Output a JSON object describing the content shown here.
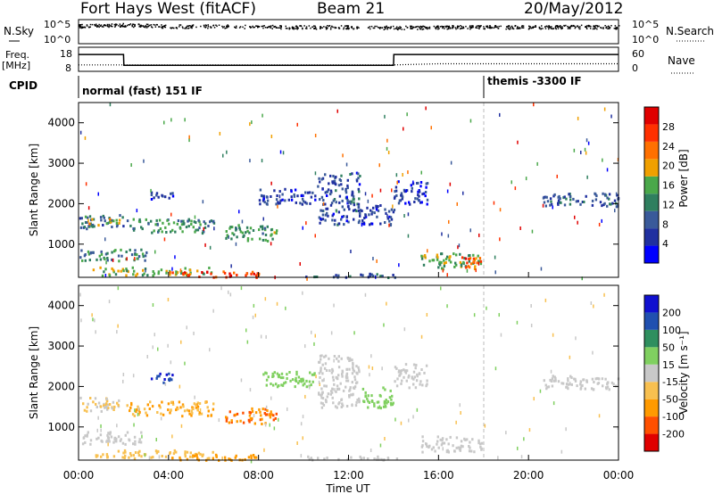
{
  "header": {
    "radar": "Fort Hays West (fitACF)",
    "beam": "Beam 21",
    "date": "20/May/2012"
  },
  "side_labels": {
    "nsky": "N.Sky",
    "freq": "Freq.",
    "freq_unit": "[MHz]",
    "cpid": "CPID",
    "nsearch": "N.Search",
    "nave": "Nave"
  },
  "cpid_modes": {
    "mode1": "normal (fast) 151 IF",
    "mode2": "themis -3300 IF"
  },
  "colors": {
    "power": [
      "#0000ff",
      "#2030a0",
      "#3a5a9a",
      "#2f7f5f",
      "#4aa84a",
      "#f0a000",
      "#ff7000",
      "#ff3000",
      "#e00000"
    ],
    "velocity": [
      "#e00000",
      "#ff5000",
      "#ff9a00",
      "#f8c050",
      "#c8c8c8",
      "#80d060",
      "#2f8f5f",
      "#2050b0",
      "#1010d0"
    ],
    "ground_scatter": "#c8c8c8"
  },
  "chart_data": [
    {
      "type": "line",
      "name": "sky-noise-panel",
      "left_tick_labels": [
        "10^5",
        "10^0"
      ],
      "right_tick_labels": [
        "10^5",
        "10^0"
      ],
      "series": [
        {
          "name": "N.Sky",
          "x": [
            "00:00",
            "02:00",
            "04:00",
            "06:00",
            "08:00",
            "10:00",
            "12:00",
            "14:00",
            "16:00",
            "18:00",
            "20:00",
            "22:00",
            "24:00"
          ],
          "values": [
            0.75,
            0.8,
            0.73,
            0.74,
            0.72,
            0.7,
            0.71,
            0.68,
            0.7,
            0.71,
            0.7,
            0.72,
            0.7
          ]
        }
      ],
      "ylim": [
        0,
        1
      ]
    },
    {
      "type": "line",
      "name": "frequency-panel",
      "left_tick_labels": [
        "18",
        "8"
      ],
      "right_tick_labels": [
        "60",
        "0"
      ],
      "series": [
        {
          "name": "Freq.",
          "x": [
            "00:00",
            "02:00",
            "02:01",
            "14:00",
            "14:01",
            "24:00"
          ],
          "values": [
            15,
            15,
            10.5,
            10.5,
            15,
            15
          ]
        },
        {
          "name": "Nave",
          "x": [
            "00:00",
            "14:00",
            "16:00",
            "24:00"
          ],
          "values": [
            16,
            16,
            19,
            19
          ]
        }
      ],
      "ylim_left": [
        8,
        18
      ],
      "ylim_right": [
        0,
        60
      ]
    },
    {
      "type": "heatmap",
      "name": "power-panel",
      "xlabel": "",
      "ylabel": "Slant Range [km]",
      "y_ticks": [
        "1000",
        "2000",
        "3000",
        "4000"
      ],
      "ylim": [
        180,
        4500
      ],
      "colorbar_label": "Power [dB]",
      "colorbar_ticks": [
        "4",
        "8",
        "12",
        "16",
        "20",
        "24",
        "28"
      ],
      "colorbar_range": [
        0,
        30
      ],
      "regions": [
        {
          "t0": 0.0,
          "t1": 2.0,
          "r0": 1400,
          "r1": 1750,
          "v": 10
        },
        {
          "t0": 0.3,
          "t1": 1.8,
          "r0": 1500,
          "r1": 1650,
          "v": 18
        },
        {
          "t0": 2.1,
          "t1": 6.0,
          "r0": 1300,
          "r1": 1650,
          "v": 12
        },
        {
          "t0": 3.2,
          "t1": 4.2,
          "r0": 2100,
          "r1": 2350,
          "v": 6
        },
        {
          "t0": 6.5,
          "t1": 8.8,
          "r0": 1100,
          "r1": 1500,
          "v": 13
        },
        {
          "t0": 0.0,
          "t1": 3.0,
          "r0": 600,
          "r1": 900,
          "v": 12
        },
        {
          "t0": 0.5,
          "t1": 6.0,
          "r0": 250,
          "r1": 450,
          "v": 16
        },
        {
          "t0": 4.0,
          "t1": 8.0,
          "r0": 200,
          "r1": 350,
          "v": 24
        },
        {
          "t0": 8.0,
          "t1": 10.5,
          "r0": 2000,
          "r1": 2400,
          "v": 6
        },
        {
          "t0": 10.6,
          "t1": 12.5,
          "r0": 1500,
          "r1": 2800,
          "v": 7
        },
        {
          "t0": 12.5,
          "t1": 14.0,
          "r0": 1500,
          "r1": 2000,
          "v": 6
        },
        {
          "t0": 14.0,
          "t1": 15.5,
          "r0": 2000,
          "r1": 2600,
          "v": 6
        },
        {
          "t0": 15.2,
          "t1": 17.9,
          "r0": 400,
          "r1": 800,
          "v": 14
        },
        {
          "t0": 16.8,
          "t1": 17.9,
          "r0": 450,
          "r1": 700,
          "v": 24
        },
        {
          "t0": 20.5,
          "t1": 24.0,
          "r0": 1950,
          "r1": 2300,
          "v": 8
        },
        {
          "t0": 10.0,
          "t1": 14.5,
          "r0": 200,
          "r1": 300,
          "v": 8
        }
      ]
    },
    {
      "type": "heatmap",
      "name": "velocity-panel",
      "xlabel": "Time UT",
      "ylabel": "Slant Range [km]",
      "x_ticks": [
        "00:00",
        "04:00",
        "08:00",
        "12:00",
        "16:00",
        "20:00",
        "00:00"
      ],
      "y_ticks": [
        "1000",
        "2000",
        "3000",
        "4000"
      ],
      "ylim": [
        180,
        4500
      ],
      "colorbar_label": "Velocity [m s⁻¹]",
      "colorbar_ticks": [
        "-200",
        "-100",
        "-50",
        "-15",
        "15",
        "50",
        "100",
        "200"
      ],
      "regions": [
        {
          "t0": 0.0,
          "t1": 2.0,
          "r0": 1400,
          "r1": 1750,
          "v": -15
        },
        {
          "t0": 2.1,
          "t1": 6.0,
          "r0": 1300,
          "r1": 1650,
          "v": -50
        },
        {
          "t0": 3.2,
          "t1": 4.2,
          "r0": 2100,
          "r1": 2350,
          "v": 200
        },
        {
          "t0": 6.5,
          "t1": 8.8,
          "r0": 1100,
          "r1": 1500,
          "v": -100
        },
        {
          "t0": 0.0,
          "t1": 3.0,
          "r0": 600,
          "r1": 900,
          "v": 0
        },
        {
          "t0": 0.5,
          "t1": 6.0,
          "r0": 250,
          "r1": 450,
          "v": -40
        },
        {
          "t0": 4.0,
          "t1": 8.0,
          "r0": 200,
          "r1": 350,
          "v": -80
        },
        {
          "t0": 8.0,
          "t1": 10.5,
          "r0": 2000,
          "r1": 2400,
          "v": 30
        },
        {
          "t0": 10.6,
          "t1": 12.5,
          "r0": 1500,
          "r1": 2800,
          "v": 0
        },
        {
          "t0": 12.5,
          "t1": 14.0,
          "r0": 1500,
          "r1": 2000,
          "v": 40
        },
        {
          "t0": 14.0,
          "t1": 15.5,
          "r0": 2000,
          "r1": 2600,
          "v": 0
        },
        {
          "t0": 15.2,
          "t1": 17.9,
          "r0": 400,
          "r1": 800,
          "v": 0
        },
        {
          "t0": 20.5,
          "t1": 24.0,
          "r0": 1950,
          "r1": 2300,
          "v": 0
        },
        {
          "t0": 10.0,
          "t1": 14.5,
          "r0": 200,
          "r1": 300,
          "v": 0
        }
      ]
    }
  ]
}
